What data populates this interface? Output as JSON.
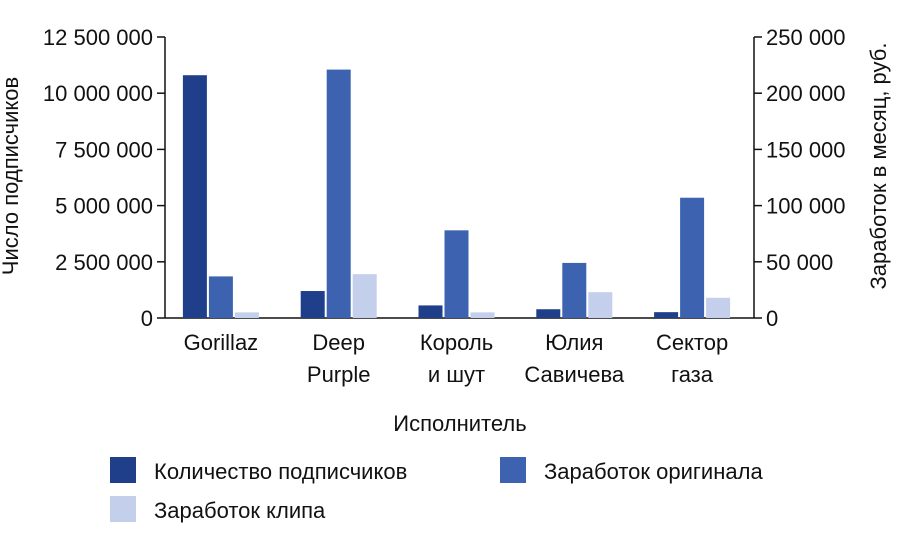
{
  "chart_data": {
    "type": "bar",
    "xlabel": "Исполнитель",
    "ylabel_left": "Число подписчиков",
    "ylabel_right": "Заработок в месяц, руб.",
    "categories": [
      [
        "Gorillaz"
      ],
      [
        "Deep",
        "Purple"
      ],
      [
        "Король",
        "и шут"
      ],
      [
        "Юлия",
        "Савичева"
      ],
      [
        "Сектор",
        "газа"
      ]
    ],
    "ylim_left": [
      0,
      12500000
    ],
    "ylim_right": [
      0,
      250000
    ],
    "yticks_left": [
      "0",
      "2 500 000",
      "5 000 000",
      "7 500 000",
      "10 000 000",
      "12 500 000"
    ],
    "yticks_right": [
      "0",
      "50 000",
      "100 000",
      "150 000",
      "200 000",
      "250 000"
    ],
    "series": [
      {
        "name": "Количество подписчиков",
        "axis": "left",
        "color": "#1f3f8a",
        "values": [
          10800000,
          1200000,
          560000,
          390000,
          260000
        ]
      },
      {
        "name": "Заработок оригинала",
        "axis": "right",
        "color": "#3d63b0",
        "values": [
          37000,
          221000,
          78000,
          49000,
          107000
        ]
      },
      {
        "name": "Заработок клипа",
        "axis": "right",
        "color": "#c3cfeb",
        "values": [
          5000,
          39000,
          5000,
          23000,
          18000
        ]
      }
    ],
    "legend_position": "bottom",
    "grid": false
  }
}
